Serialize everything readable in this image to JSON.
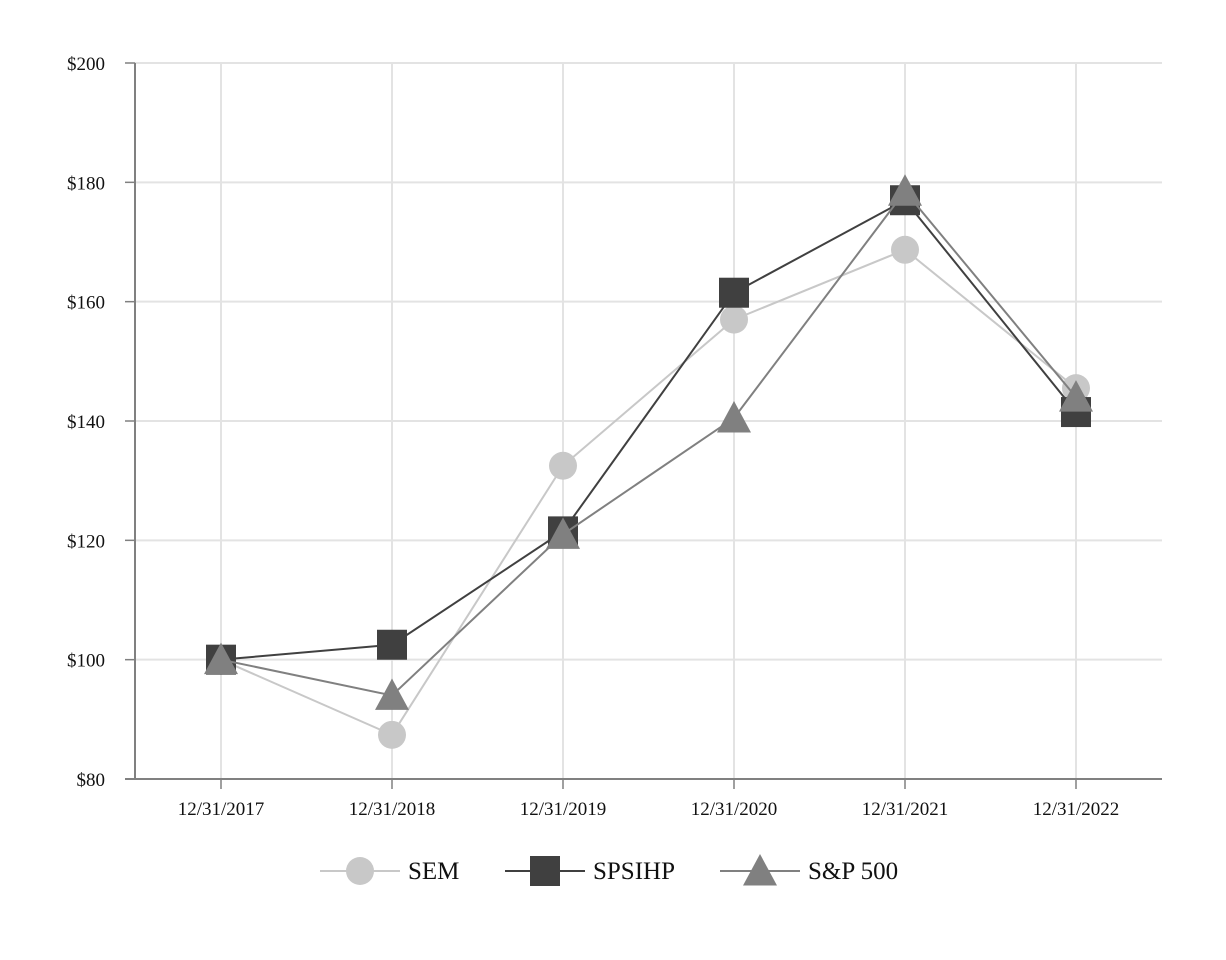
{
  "chart_data": {
    "type": "line",
    "title": "",
    "xlabel": "",
    "ylabel": "",
    "categories": [
      "12/31/2017",
      "12/31/2018",
      "12/31/2019",
      "12/31/2020",
      "12/31/2021",
      "12/31/2022"
    ],
    "ylim": [
      80,
      200
    ],
    "yticks": [
      80,
      100,
      120,
      140,
      160,
      180,
      200
    ],
    "ytick_labels": [
      "$80",
      "$100",
      "$120",
      "$140",
      "$160",
      "$180",
      "$200"
    ],
    "grid": true,
    "legend_position": "bottom-center",
    "series": [
      {
        "name": "SEM",
        "marker": "circle",
        "color": "#c8c8c8",
        "values": [
          100.0,
          87.4,
          132.5,
          157.0,
          168.7,
          145.5
        ]
      },
      {
        "name": "SPSIHP",
        "marker": "square",
        "color": "#404040",
        "values": [
          100.0,
          102.5,
          121.5,
          161.5,
          177.0,
          141.5
        ]
      },
      {
        "name": "S&P 500",
        "marker": "triangle",
        "color": "#808080",
        "values": [
          100.0,
          94.0,
          121.0,
          140.5,
          178.5,
          144.0
        ]
      }
    ]
  }
}
